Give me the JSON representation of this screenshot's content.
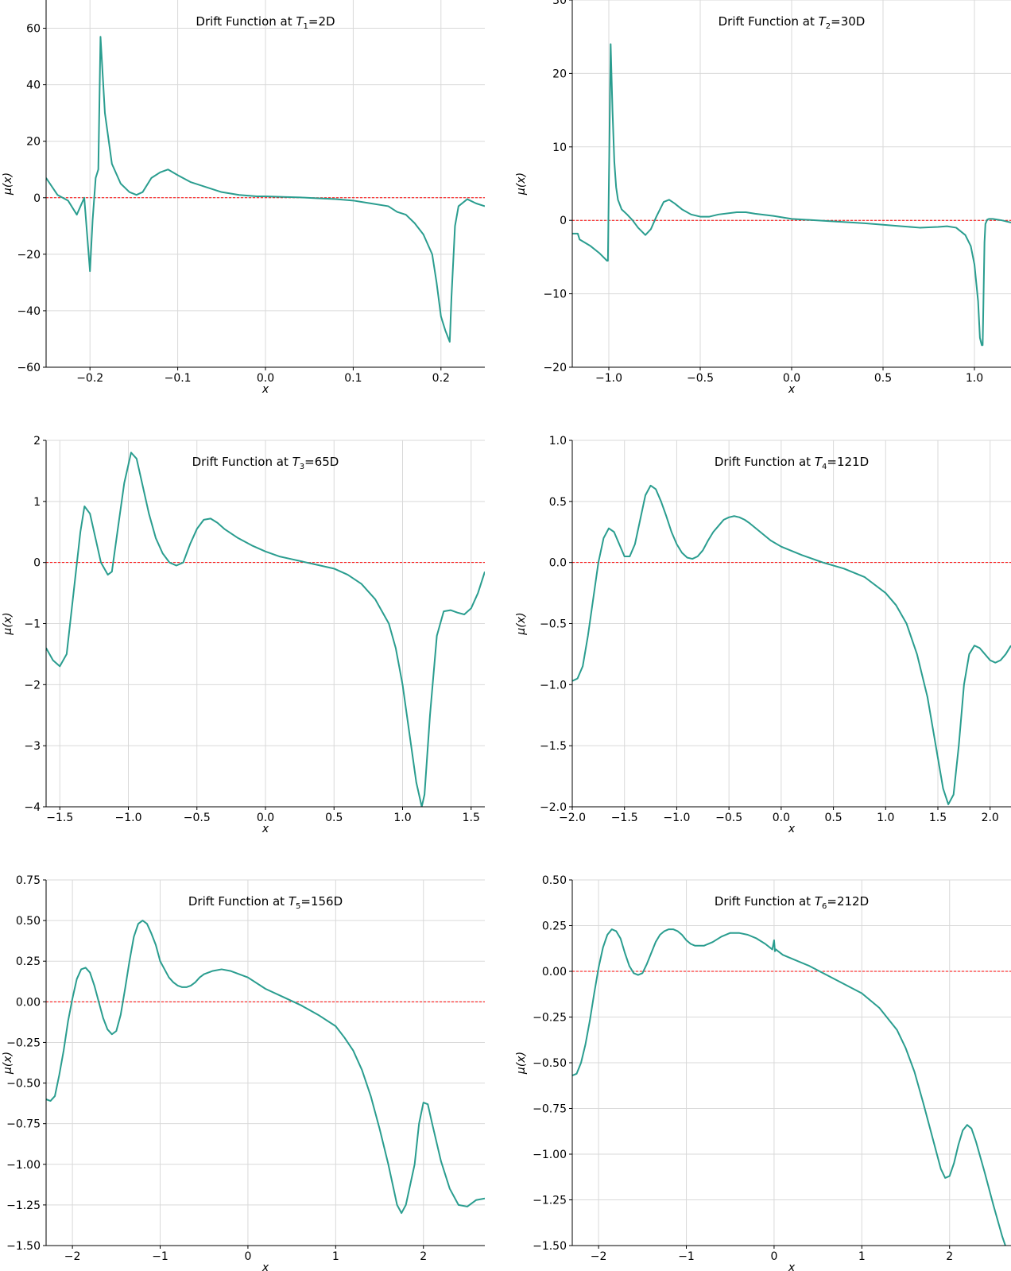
{
  "chart_data": [
    {
      "type": "line",
      "title": "Drift Function at T1=2D",
      "title_parts": {
        "pre": "Drift Function at ",
        "sym": "T",
        "sub": "1",
        "post": "=2D"
      },
      "xlabel": "x",
      "ylabel": "μ(x)",
      "xlim": [
        -0.25,
        0.25
      ],
      "ylim": [
        -60,
        70
      ],
      "xticks": [
        -0.2,
        -0.1,
        0.0,
        0.1,
        0.2
      ],
      "xtick_labels": [
        "−0.2",
        "−0.1",
        "0.0",
        "0.1",
        "0.2"
      ],
      "yticks": [
        -60,
        -40,
        -20,
        0,
        20,
        40,
        60
      ],
      "ytick_labels": [
        "−60",
        "−40",
        "−20",
        "0",
        "20",
        "40",
        "60"
      ],
      "zero_line": 0,
      "color": "#2a9d8f",
      "x": [
        -0.25,
        -0.237,
        -0.225,
        -0.215,
        -0.2065,
        -0.2,
        -0.197,
        -0.1935,
        -0.1905,
        -0.188,
        -0.183,
        -0.175,
        -0.165,
        -0.155,
        -0.147,
        -0.14,
        -0.13,
        -0.12,
        -0.111,
        -0.1,
        -0.085,
        -0.07,
        -0.05,
        -0.03,
        -0.01,
        0.0,
        0.02,
        0.04,
        0.06,
        0.08,
        0.1,
        0.12,
        0.14,
        0.15,
        0.16,
        0.17,
        0.18,
        0.19,
        0.195,
        0.2,
        0.205,
        0.21,
        0.212,
        0.216,
        0.22,
        0.23,
        0.24,
        0.25
      ],
      "y": [
        7,
        1,
        -1,
        -6,
        0,
        -26,
        -8,
        7,
        10,
        57,
        30,
        12,
        5,
        2,
        1,
        2,
        7,
        9,
        10,
        8,
        5.5,
        4,
        2,
        1,
        0.5,
        0.5,
        0.3,
        0.1,
        -0.2,
        -0.5,
        -1,
        -2,
        -3,
        -5,
        -6,
        -9,
        -13,
        -20,
        -30,
        -42,
        -47,
        -51,
        -35,
        -10,
        -3,
        -0.5,
        -2,
        -3
      ]
    },
    {
      "type": "line",
      "title": "Drift Function at T2=30D",
      "title_parts": {
        "pre": "Drift Function at ",
        "sym": "T",
        "sub": "2",
        "post": "=30D"
      },
      "xlabel": "x",
      "ylabel": "μ(x)",
      "xlim": [
        -1.2,
        1.2
      ],
      "ylim": [
        -20,
        30
      ],
      "xticks": [
        -1.0,
        -0.5,
        0.0,
        0.5,
        1.0
      ],
      "xtick_labels": [
        "−1.0",
        "−0.5",
        "0.0",
        "0.5",
        "1.0"
      ],
      "yticks": [
        -20,
        -10,
        0,
        10,
        20,
        30
      ],
      "ytick_labels": [
        "−20",
        "−10",
        "0",
        "10",
        "20",
        "30"
      ],
      "zero_line": 0,
      "color": "#2a9d8f",
      "x": [
        -1.2,
        -1.17,
        -1.16,
        -1.1,
        -1.05,
        -1.01,
        -1.005,
        -0.99,
        -0.98,
        -0.97,
        -0.96,
        -0.95,
        -0.93,
        -0.9,
        -0.87,
        -0.84,
        -0.8,
        -0.77,
        -0.74,
        -0.7,
        -0.67,
        -0.64,
        -0.6,
        -0.55,
        -0.5,
        -0.45,
        -0.4,
        -0.3,
        -0.25,
        -0.2,
        -0.1,
        0.0,
        0.2,
        0.4,
        0.6,
        0.7,
        0.8,
        0.85,
        0.9,
        0.95,
        0.98,
        1.0,
        1.02,
        1.03,
        1.04,
        1.045,
        1.05,
        1.055,
        1.06,
        1.07,
        1.08,
        1.1,
        1.15,
        1.2
      ],
      "y": [
        -1.8,
        -1.8,
        -2.6,
        -3.5,
        -4.5,
        -5.5,
        -5.5,
        24,
        15,
        8,
        4.5,
        2.8,
        1.5,
        0.8,
        0,
        -1,
        -2,
        -1.2,
        0.5,
        2.5,
        2.8,
        2.3,
        1.5,
        0.8,
        0.5,
        0.5,
        0.8,
        1.1,
        1.1,
        0.9,
        0.6,
        0.2,
        -0.1,
        -0.4,
        -0.8,
        -1.0,
        -0.9,
        -0.8,
        -1.0,
        -2,
        -3.5,
        -6,
        -11,
        -16,
        -17,
        -17,
        -10,
        -3,
        -0.5,
        0.1,
        0.2,
        0.2,
        0.0,
        -0.3
      ]
    },
    {
      "type": "line",
      "title": "Drift Function at T3=65D",
      "title_parts": {
        "pre": "Drift Function at ",
        "sym": "T",
        "sub": "3",
        "post": "=65D"
      },
      "xlabel": "x",
      "ylabel": "μ(x)",
      "xlim": [
        -1.6,
        1.6
      ],
      "ylim": [
        -4,
        2
      ],
      "xticks": [
        -1.5,
        -1.0,
        -0.5,
        0.0,
        0.5,
        1.0,
        1.5
      ],
      "xtick_labels": [
        "−1.5",
        "−1.0",
        "−0.5",
        "0.0",
        "0.5",
        "1.0",
        "1.5"
      ],
      "yticks": [
        -4,
        -3,
        -2,
        -1,
        0,
        1,
        2
      ],
      "ytick_labels": [
        "−4",
        "−3",
        "−2",
        "−1",
        "0",
        "1",
        "2"
      ],
      "zero_line": 0,
      "color": "#2a9d8f",
      "x": [
        -1.6,
        -1.55,
        -1.5,
        -1.45,
        -1.4,
        -1.35,
        -1.32,
        -1.28,
        -1.24,
        -1.2,
        -1.15,
        -1.12,
        -1.08,
        -1.03,
        -0.98,
        -0.94,
        -0.9,
        -0.85,
        -0.8,
        -0.75,
        -0.7,
        -0.65,
        -0.6,
        -0.55,
        -0.5,
        -0.45,
        -0.4,
        -0.35,
        -0.3,
        -0.2,
        -0.1,
        0.0,
        0.1,
        0.2,
        0.3,
        0.4,
        0.5,
        0.6,
        0.7,
        0.8,
        0.9,
        0.95,
        1.0,
        1.05,
        1.1,
        1.14,
        1.16,
        1.2,
        1.25,
        1.3,
        1.35,
        1.4,
        1.45,
        1.5,
        1.55,
        1.6
      ],
      "y": [
        -1.4,
        -1.6,
        -1.7,
        -1.5,
        -0.5,
        0.5,
        0.92,
        0.8,
        0.4,
        0.0,
        -0.2,
        -0.15,
        0.5,
        1.3,
        1.8,
        1.7,
        1.3,
        0.8,
        0.4,
        0.15,
        0.0,
        -0.05,
        0.0,
        0.3,
        0.55,
        0.7,
        0.72,
        0.65,
        0.55,
        0.4,
        0.28,
        0.18,
        0.1,
        0.05,
        0.0,
        -0.05,
        -0.1,
        -0.2,
        -0.35,
        -0.6,
        -1.0,
        -1.4,
        -2.0,
        -2.8,
        -3.6,
        -4.0,
        -3.8,
        -2.5,
        -1.2,
        -0.8,
        -0.78,
        -0.82,
        -0.85,
        -0.75,
        -0.5,
        -0.15
      ]
    },
    {
      "type": "line",
      "title": "Drift Function at T4=121D",
      "title_parts": {
        "pre": "Drift Function at ",
        "sym": "T",
        "sub": "4",
        "post": "=121D"
      },
      "xlabel": "x",
      "ylabel": "μ(x)",
      "xlim": [
        -2.0,
        2.2
      ],
      "ylim": [
        -2.0,
        1.0
      ],
      "xticks": [
        -2.0,
        -1.5,
        -1.0,
        -0.5,
        0.0,
        0.5,
        1.0,
        1.5,
        2.0
      ],
      "xtick_labels": [
        "−2.0",
        "−1.5",
        "−1.0",
        "−0.5",
        "0.0",
        "0.5",
        "1.0",
        "1.5",
        "2.0"
      ],
      "yticks": [
        -2.0,
        -1.5,
        -1.0,
        -0.5,
        0.0,
        0.5,
        1.0
      ],
      "ytick_labels": [
        "−2.0",
        "−1.5",
        "−1.0",
        "−0.5",
        "0.0",
        "0.5",
        "1.0"
      ],
      "zero_line": 0,
      "color": "#2a9d8f",
      "x": [
        -2.0,
        -1.95,
        -1.9,
        -1.85,
        -1.8,
        -1.75,
        -1.7,
        -1.65,
        -1.6,
        -1.55,
        -1.5,
        -1.45,
        -1.4,
        -1.35,
        -1.3,
        -1.25,
        -1.2,
        -1.15,
        -1.1,
        -1.05,
        -1.0,
        -0.95,
        -0.9,
        -0.85,
        -0.8,
        -0.75,
        -0.7,
        -0.65,
        -0.6,
        -0.55,
        -0.5,
        -0.45,
        -0.4,
        -0.35,
        -0.3,
        -0.2,
        -0.1,
        0.0,
        0.2,
        0.4,
        0.6,
        0.8,
        1.0,
        1.1,
        1.2,
        1.3,
        1.4,
        1.45,
        1.5,
        1.55,
        1.6,
        1.65,
        1.7,
        1.75,
        1.8,
        1.85,
        1.9,
        1.95,
        2.0,
        2.05,
        2.1,
        2.15,
        2.2
      ],
      "y": [
        -0.97,
        -0.95,
        -0.85,
        -0.6,
        -0.3,
        0.0,
        0.2,
        0.28,
        0.25,
        0.15,
        0.05,
        0.05,
        0.15,
        0.35,
        0.55,
        0.63,
        0.6,
        0.5,
        0.38,
        0.25,
        0.15,
        0.08,
        0.04,
        0.03,
        0.05,
        0.1,
        0.18,
        0.25,
        0.3,
        0.35,
        0.37,
        0.38,
        0.37,
        0.35,
        0.32,
        0.25,
        0.18,
        0.13,
        0.06,
        0.0,
        -0.05,
        -0.12,
        -0.25,
        -0.35,
        -0.5,
        -0.75,
        -1.1,
        -1.35,
        -1.6,
        -1.85,
        -1.98,
        -1.9,
        -1.5,
        -1.0,
        -0.75,
        -0.68,
        -0.7,
        -0.75,
        -0.8,
        -0.82,
        -0.8,
        -0.75,
        -0.68
      ]
    },
    {
      "type": "line",
      "title": "Drift Function at T5=156D",
      "title_parts": {
        "pre": "Drift Function at ",
        "sym": "T",
        "sub": "5",
        "post": "=156D"
      },
      "xlabel": "x",
      "ylabel": "μ(x)",
      "xlim": [
        -2.3,
        2.7
      ],
      "ylim": [
        -1.5,
        0.75
      ],
      "xticks": [
        -2,
        -1,
        0,
        1,
        2
      ],
      "xtick_labels": [
        "−2",
        "−1",
        "0",
        "1",
        "2"
      ],
      "yticks": [
        -1.5,
        -1.25,
        -1.0,
        -0.75,
        -0.5,
        -0.25,
        0.0,
        0.25,
        0.5,
        0.75
      ],
      "ytick_labels": [
        "−1.50",
        "−1.25",
        "−1.00",
        "−0.75",
        "−0.50",
        "−0.25",
        "0.00",
        "0.25",
        "0.50",
        "0.75"
      ],
      "zero_line": 0,
      "color": "#2a9d8f",
      "x": [
        -2.3,
        -2.25,
        -2.2,
        -2.15,
        -2.1,
        -2.05,
        -2.0,
        -1.95,
        -1.9,
        -1.85,
        -1.8,
        -1.75,
        -1.7,
        -1.65,
        -1.6,
        -1.55,
        -1.5,
        -1.45,
        -1.4,
        -1.35,
        -1.3,
        -1.25,
        -1.2,
        -1.15,
        -1.1,
        -1.05,
        -1.0,
        -0.95,
        -0.9,
        -0.85,
        -0.8,
        -0.75,
        -0.7,
        -0.65,
        -0.6,
        -0.55,
        -0.5,
        -0.4,
        -0.3,
        -0.2,
        -0.1,
        0.0,
        0.2,
        0.4,
        0.6,
        0.8,
        1.0,
        1.1,
        1.2,
        1.3,
        1.4,
        1.5,
        1.6,
        1.7,
        1.75,
        1.8,
        1.9,
        1.95,
        2.0,
        2.05,
        2.1,
        2.2,
        2.3,
        2.4,
        2.5,
        2.6,
        2.7
      ],
      "y": [
        -0.6,
        -0.61,
        -0.58,
        -0.45,
        -0.3,
        -0.12,
        0.02,
        0.14,
        0.2,
        0.21,
        0.18,
        0.1,
        0.0,
        -0.1,
        -0.17,
        -0.2,
        -0.18,
        -0.08,
        0.08,
        0.25,
        0.4,
        0.48,
        0.5,
        0.48,
        0.42,
        0.35,
        0.25,
        0.2,
        0.15,
        0.12,
        0.1,
        0.09,
        0.09,
        0.1,
        0.12,
        0.15,
        0.17,
        0.19,
        0.2,
        0.19,
        0.17,
        0.15,
        0.08,
        0.03,
        -0.02,
        -0.08,
        -0.15,
        -0.22,
        -0.3,
        -0.42,
        -0.58,
        -0.78,
        -1.0,
        -1.25,
        -1.3,
        -1.25,
        -1.0,
        -0.75,
        -0.62,
        -0.63,
        -0.75,
        -0.98,
        -1.15,
        -1.25,
        -1.26,
        -1.22,
        -1.21
      ]
    },
    {
      "type": "line",
      "title": "Drift Function at T6=212D",
      "title_parts": {
        "pre": "Drift Function at ",
        "sym": "T",
        "sub": "6",
        "post": "=212D"
      },
      "xlabel": "x",
      "ylabel": "μ(x)",
      "xlim": [
        -2.3,
        2.7
      ],
      "ylim": [
        -1.5,
        0.5
      ],
      "xticks": [
        -2,
        -1,
        0,
        1,
        2
      ],
      "xtick_labels": [
        "−2",
        "−1",
        "0",
        "1",
        "2"
      ],
      "yticks": [
        -1.5,
        -1.25,
        -1.0,
        -0.75,
        -0.5,
        -0.25,
        0.0,
        0.25,
        0.5
      ],
      "ytick_labels": [
        "−1.50",
        "−1.25",
        "−1.00",
        "−0.75",
        "−0.50",
        "−0.25",
        "0.00",
        "0.25",
        "0.50"
      ],
      "zero_line": 0,
      "color": "#2a9d8f",
      "x": [
        -2.3,
        -2.25,
        -2.2,
        -2.15,
        -2.1,
        -2.05,
        -2.0,
        -1.95,
        -1.9,
        -1.85,
        -1.8,
        -1.75,
        -1.7,
        -1.65,
        -1.6,
        -1.55,
        -1.5,
        -1.45,
        -1.4,
        -1.35,
        -1.3,
        -1.25,
        -1.2,
        -1.15,
        -1.1,
        -1.05,
        -1.0,
        -0.95,
        -0.9,
        -0.85,
        -0.8,
        -0.7,
        -0.6,
        -0.5,
        -0.4,
        -0.3,
        -0.2,
        -0.1,
        -0.02,
        0.0,
        0.01,
        0.02,
        0.1,
        0.2,
        0.4,
        0.6,
        0.8,
        1.0,
        1.2,
        1.4,
        1.5,
        1.6,
        1.7,
        1.8,
        1.9,
        1.95,
        2.0,
        2.05,
        2.1,
        2.15,
        2.2,
        2.25,
        2.3,
        2.4,
        2.5,
        2.6,
        2.65
      ],
      "y": [
        -0.57,
        -0.56,
        -0.5,
        -0.4,
        -0.27,
        -0.12,
        0.02,
        0.13,
        0.2,
        0.23,
        0.22,
        0.18,
        0.1,
        0.03,
        -0.01,
        -0.02,
        -0.01,
        0.04,
        0.1,
        0.16,
        0.2,
        0.22,
        0.23,
        0.23,
        0.22,
        0.2,
        0.17,
        0.15,
        0.14,
        0.14,
        0.14,
        0.16,
        0.19,
        0.21,
        0.21,
        0.2,
        0.18,
        0.15,
        0.12,
        0.17,
        0.11,
        0.12,
        0.09,
        0.07,
        0.03,
        -0.02,
        -0.07,
        -0.12,
        -0.2,
        -0.32,
        -0.42,
        -0.55,
        -0.72,
        -0.9,
        -1.08,
        -1.13,
        -1.12,
        -1.05,
        -0.95,
        -0.87,
        -0.84,
        -0.86,
        -0.93,
        -1.1,
        -1.28,
        -1.45,
        -1.52
      ]
    }
  ]
}
